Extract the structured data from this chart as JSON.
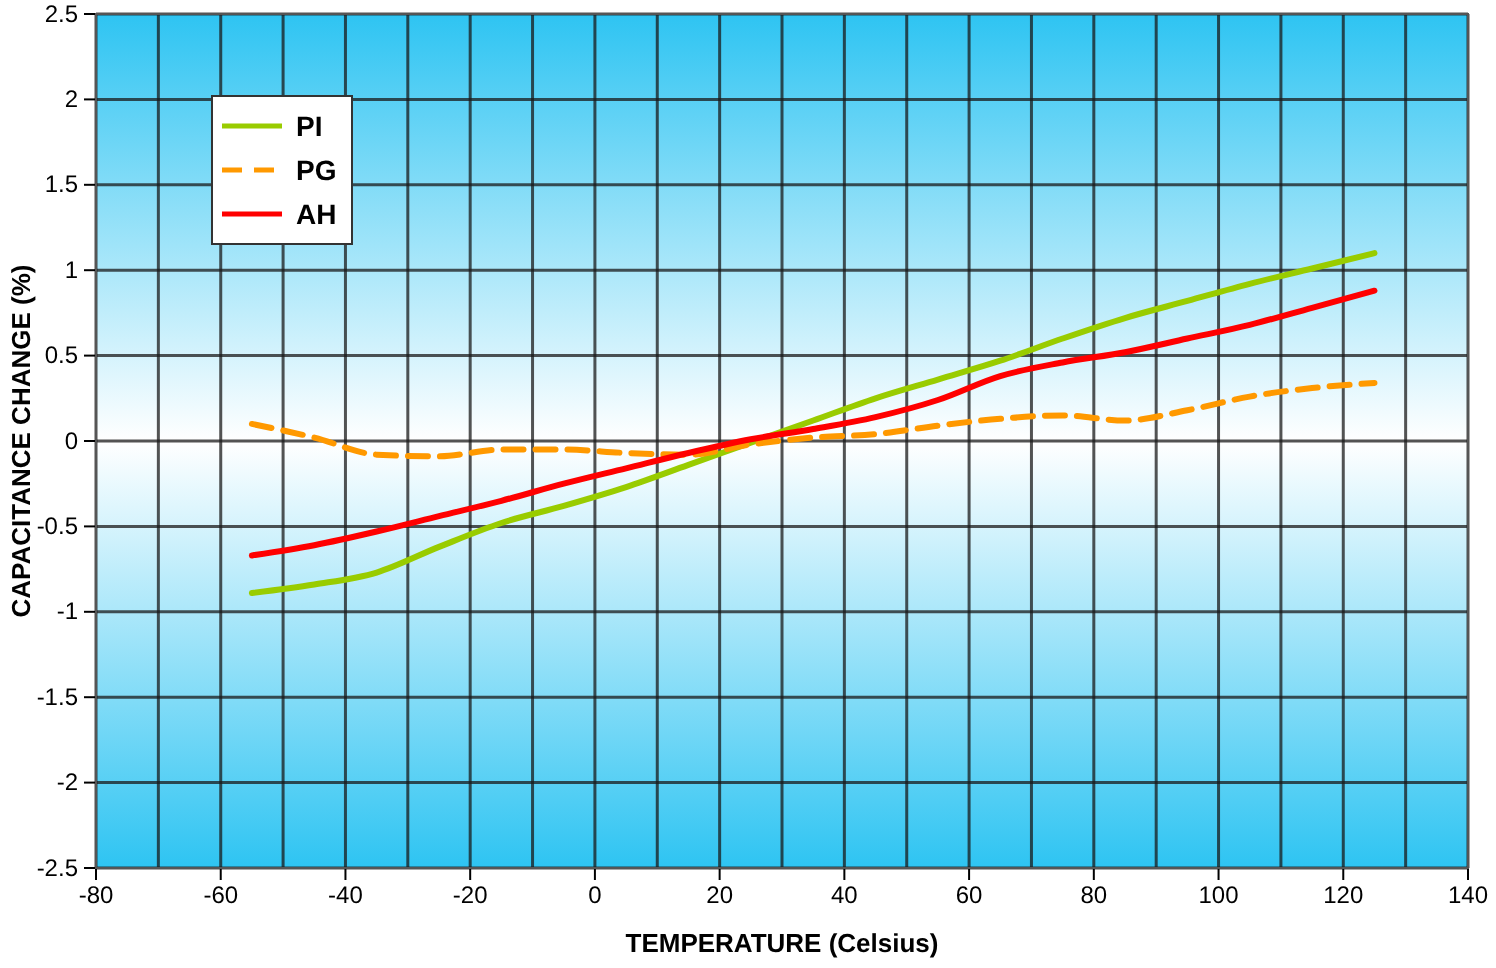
{
  "chart_data": {
    "type": "line",
    "xlabel": "TEMPERATURE (Celsius)",
    "ylabel": "CAPACITANCE CHANGE (%)",
    "xlim": [
      -80,
      140
    ],
    "xticks": [
      -80,
      -60,
      -40,
      -20,
      0,
      20,
      40,
      60,
      80,
      100,
      120,
      140
    ],
    "ylim": [
      -2.5,
      2.5
    ],
    "yticks": [
      -2.5,
      -2,
      -1.5,
      -1,
      -0.5,
      0,
      0.5,
      1,
      1.5,
      2,
      2.5
    ],
    "x": [
      -55,
      -45,
      -35,
      -25,
      -15,
      -5,
      5,
      15,
      25,
      35,
      45,
      55,
      65,
      75,
      85,
      95,
      105,
      115,
      125
    ],
    "grid": true,
    "legend": "top left",
    "series": [
      {
        "name": "PI",
        "color": "#99cc00",
        "line_style": "solid",
        "values": [
          -0.89,
          -0.84,
          -0.77,
          -0.62,
          -0.48,
          -0.38,
          -0.27,
          -0.14,
          -0.01,
          0.12,
          0.25,
          0.36,
          0.47,
          0.6,
          0.72,
          0.82,
          0.92,
          1.01,
          1.1
        ]
      },
      {
        "name": "PG",
        "color": "#ff9900",
        "line_style": "dashed",
        "values": [
          0.1,
          0.02,
          -0.08,
          -0.09,
          -0.05,
          -0.05,
          -0.07,
          -0.08,
          -0.02,
          0.02,
          0.04,
          0.09,
          0.13,
          0.15,
          0.12,
          0.18,
          0.26,
          0.31,
          0.34
        ]
      },
      {
        "name": "AH",
        "color": "#ff0000",
        "line_style": "solid",
        "values": [
          -0.67,
          -0.61,
          -0.53,
          -0.44,
          -0.35,
          -0.25,
          -0.16,
          -0.07,
          0.01,
          0.07,
          0.14,
          0.24,
          0.38,
          0.46,
          0.52,
          0.6,
          0.68,
          0.78,
          0.88
        ]
      }
    ]
  }
}
